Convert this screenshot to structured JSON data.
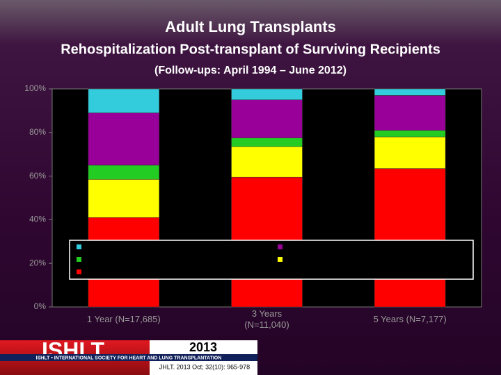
{
  "chart_data": {
    "type": "stacked_bar",
    "title": "Adult Lung Transplants",
    "subtitle": "Rehospitalization Post-transplant of Surviving Recipients",
    "period": "(Follow-ups: April 1994 – June 2012)",
    "categories": [
      "1 Year (N=17,685)",
      "3 Years (N=11,040)",
      "5 Years (N=7,177)"
    ],
    "series": [
      {
        "color": "#ff0000",
        "values": [
          41,
          59.5,
          63.5
        ]
      },
      {
        "color": "#ffff00",
        "values": [
          17.5,
          14,
          14.5
        ]
      },
      {
        "color": "#22cc22",
        "values": [
          6.5,
          4,
          3
        ]
      },
      {
        "color": "#990099",
        "values": [
          24,
          17.5,
          16
        ]
      },
      {
        "color": "#33ccdd",
        "values": [
          11,
          5,
          3
        ]
      }
    ],
    "ylim": [
      0,
      100
    ],
    "yticks": [
      {
        "value": 0,
        "label": "0%"
      },
      {
        "value": 20,
        "label": "20%"
      },
      {
        "value": 40,
        "label": "40%"
      },
      {
        "value": 60,
        "label": "60%"
      },
      {
        "value": 80,
        "label": "80%"
      },
      {
        "value": 100,
        "label": "100%"
      }
    ],
    "legend": "center"
  },
  "footer": {
    "logo": "ISHLT",
    "society": "ISHLT • INTERNATIONAL SOCIETY FOR HEART AND LUNG TRANSPLANTATION",
    "year": "2013",
    "citation": "JHLT. 2013 Oct; 32(10): 965-978"
  }
}
